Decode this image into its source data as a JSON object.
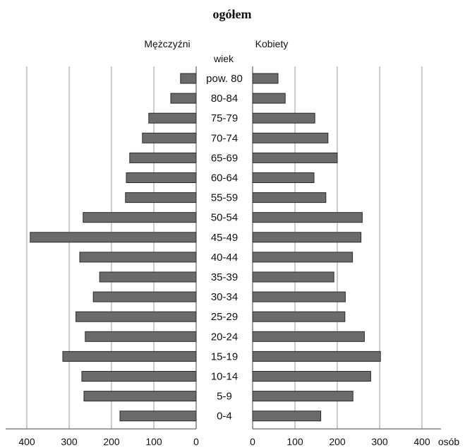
{
  "chart_data": {
    "type": "bar",
    "title": "ogółem",
    "left_label": "Mężczyźni",
    "right_label": "Kobiety",
    "category_header": "wiek",
    "unit": "osób",
    "categories": [
      "pow. 80",
      "80-84",
      "75-79",
      "70-74",
      "65-69",
      "60-64",
      "55-59",
      "50-54",
      "45-49",
      "40-44",
      "35-39",
      "30-34",
      "25-29",
      "20-24",
      "15-19",
      "10-14",
      "5-9",
      "0-4"
    ],
    "series": [
      {
        "name": "Mężczyźni",
        "values": [
          37,
          60,
          112,
          127,
          157,
          165,
          167,
          267,
          392,
          275,
          228,
          243,
          284,
          262,
          315,
          270,
          265,
          180
        ]
      },
      {
        "name": "Kobiety",
        "values": [
          60,
          77,
          147,
          178,
          200,
          145,
          173,
          259,
          256,
          236,
          192,
          219,
          218,
          264,
          302,
          279,
          237,
          161
        ]
      }
    ],
    "xlim": [
      0,
      400
    ],
    "ticks": [
      400,
      300,
      200,
      100,
      0
    ],
    "right_ticks": [
      0,
      100,
      200,
      300,
      400
    ],
    "grid": true,
    "colors": {
      "bar_fill": "#6b6b6b",
      "bar_stroke": "#2a2a2a",
      "grid": "#999999",
      "axis": "#444444"
    }
  }
}
